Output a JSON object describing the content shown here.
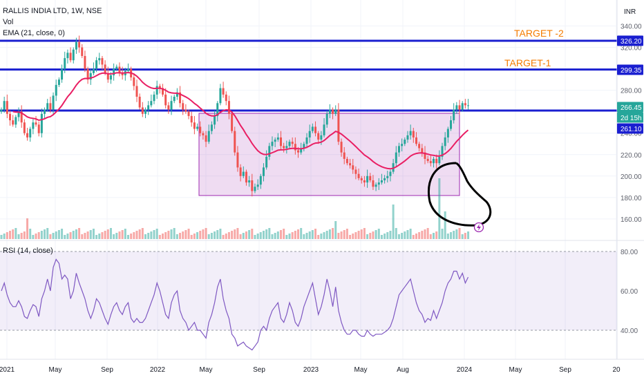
{
  "legend": {
    "symbol": "RALLIS INDIA LTD, 1W, NSE",
    "vol": "Vol",
    "ema": "EMA (21, close, 0)",
    "rsi": "RSI (14, close)"
  },
  "currency": "INR",
  "annotations": {
    "target2": "TARGET -2",
    "target1": "TARGET-1"
  },
  "price_badges": [
    {
      "label": "326.20",
      "color": "#1a1fd0"
    },
    {
      "label": "299.35",
      "color": "#1a1fd0"
    },
    {
      "label": "266.45",
      "color": "#26a69a"
    },
    {
      "label": "2d 15h",
      "color": "#26a69a"
    },
    {
      "label": "261.10",
      "color": "#1a1fd0"
    }
  ],
  "colors": {
    "up": "#26a69a",
    "down": "#ef5350",
    "ema": "#e91e63",
    "rsi": "#7e57c2",
    "hline": "#1a1fd0",
    "box": "#9c27b0"
  },
  "chart_data": [
    {
      "type": "candlestick",
      "title": "RALLIS INDIA LTD, 1W, NSE",
      "ylim": [
        140,
        350
      ],
      "y_ticks": [
        160,
        180,
        200,
        220,
        240,
        280,
        320,
        340
      ],
      "x_ticks": [
        "2021",
        "May",
        "Sep",
        "2022",
        "May",
        "Sep",
        "2023",
        "May",
        "Aug",
        "2024",
        "May",
        "Sep",
        "20"
      ],
      "horizontal_lines": [
        326.2,
        299.35,
        261.1
      ],
      "range_box": {
        "from": "2022-04",
        "to": "2023-12",
        "low": 186,
        "high": 262
      },
      "ema_label": "EMA (21, close, 0)",
      "close_series": [
        262,
        270,
        258,
        252,
        248,
        255,
        260,
        250,
        240,
        236,
        244,
        250,
        248,
        240,
        258,
        262,
        268,
        262,
        275,
        285,
        290,
        300,
        310,
        315,
        308,
        318,
        325,
        320,
        312,
        300,
        290,
        296,
        300,
        308,
        310,
        304,
        296,
        290,
        294,
        300,
        302,
        296,
        294,
        298,
        300,
        292,
        284,
        274,
        264,
        258,
        262,
        266,
        270,
        276,
        284,
        282,
        276,
        266,
        262,
        270,
        274,
        278,
        268,
        262,
        260,
        256,
        250,
        244,
        246,
        240,
        238,
        232,
        242,
        248,
        256,
        268,
        282,
        276,
        270,
        258,
        242,
        222,
        208,
        200,
        204,
        194,
        196,
        186,
        190,
        192,
        200,
        208,
        218,
        228,
        232,
        234,
        236,
        228,
        226,
        228,
        232,
        230,
        224,
        222,
        226,
        230,
        236,
        242,
        246,
        240,
        234,
        238,
        248,
        258,
        262,
        258,
        262,
        232,
        222,
        216,
        212,
        210,
        206,
        202,
        198,
        196,
        194,
        200,
        196,
        190,
        192,
        194,
        196,
        198,
        200,
        204,
        212,
        222,
        228,
        230,
        234,
        238,
        242,
        236,
        230,
        226,
        222,
        216,
        214,
        212,
        216,
        212,
        218,
        228,
        236,
        244,
        252,
        262,
        266,
        262,
        268,
        266,
        266
      ]
    },
    {
      "type": "bar",
      "title": "Vol",
      "note": "weekly volume histogram"
    },
    {
      "type": "line",
      "title": "RSI (14, close)",
      "ylim": [
        30,
        80
      ],
      "y_ticks": [
        40,
        60,
        80
      ],
      "band": [
        40,
        80
      ],
      "values": [
        60,
        64,
        58,
        54,
        52,
        52,
        55,
        52,
        47,
        46,
        50,
        53,
        52,
        47,
        56,
        60,
        66,
        60,
        72,
        76,
        74,
        66,
        68,
        66,
        56,
        60,
        69,
        64,
        60,
        56,
        50,
        46,
        50,
        56,
        54,
        50,
        46,
        43,
        48,
        52,
        54,
        50,
        48,
        52,
        54,
        46,
        44,
        46,
        44,
        44,
        46,
        50,
        54,
        58,
        64,
        60,
        54,
        48,
        46,
        54,
        58,
        60,
        50,
        46,
        44,
        40,
        42,
        44,
        40,
        40,
        38,
        36,
        44,
        48,
        54,
        62,
        66,
        56,
        50,
        46,
        38,
        36,
        32,
        33,
        34,
        32,
        31,
        30,
        32,
        34,
        40,
        42,
        40,
        46,
        50,
        52,
        54,
        46,
        44,
        48,
        54,
        50,
        44,
        42,
        46,
        52,
        56,
        60,
        64,
        56,
        48,
        52,
        58,
        66,
        60,
        52,
        62,
        50,
        44,
        40,
        38,
        38,
        40,
        40,
        38,
        37,
        37,
        40,
        38,
        37,
        38,
        38,
        38,
        39,
        40,
        42,
        46,
        52,
        58,
        60,
        62,
        64,
        66,
        60,
        54,
        50,
        48,
        44,
        46,
        45,
        50,
        46,
        50,
        54,
        60,
        64,
        66,
        70,
        70,
        66,
        69,
        64,
        67
      ]
    }
  ]
}
